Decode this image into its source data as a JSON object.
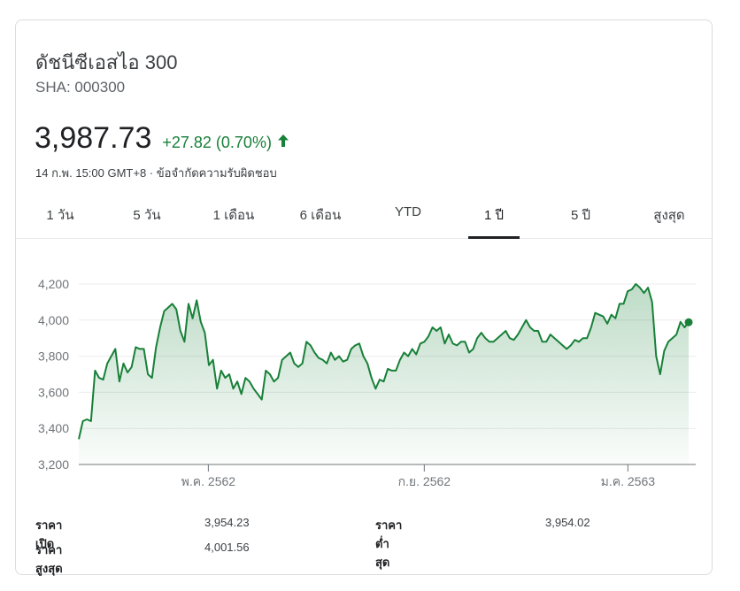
{
  "header": {
    "title": "ดัชนีซีเอสไอ 300",
    "ticker": "SHA: 000300",
    "price": "3,987.73",
    "change": "+27.82 (0.70%)",
    "timestamp": "14 ก.พ. 15:00 GMT+8 · ข้อจำกัดความรับผิดชอบ",
    "up_color": "#188038"
  },
  "tabs": [
    {
      "label": "1 วัน",
      "active": false
    },
    {
      "label": "5 วัน",
      "active": false
    },
    {
      "label": "1 เดือน",
      "active": false
    },
    {
      "label": "6 เดือน",
      "active": false
    },
    {
      "label": "YTD",
      "active": false
    },
    {
      "label": "1 ปี",
      "active": true
    },
    {
      "label": "5 ปี",
      "active": false
    },
    {
      "label": "สูงสุด",
      "active": false
    }
  ],
  "chart_data": {
    "type": "area",
    "y_ticks": [
      "4,200",
      "4,000",
      "3,800",
      "3,600",
      "3,400",
      "3,200"
    ],
    "y_tick_values": [
      4200,
      4000,
      3800,
      3600,
      3400,
      3200
    ],
    "ylim": [
      3200,
      4200
    ],
    "x_ticks": [
      "พ.ค. 2562",
      "ก.ย. 2562",
      "ม.ค. 2563"
    ],
    "x_tick_positions": [
      0.21,
      0.56,
      0.89
    ],
    "line_color": "#188038",
    "grid": true,
    "series": [
      {
        "values": [
          3340,
          3440,
          3450,
          3440,
          3720,
          3680,
          3670,
          3760,
          3800,
          3840,
          3660,
          3760,
          3710,
          3740,
          3850,
          3840,
          3840,
          3700,
          3680,
          3850,
          3960,
          4050,
          4070,
          4090,
          4060,
          3940,
          3880,
          4090,
          4010,
          4110,
          3990,
          3930,
          3750,
          3780,
          3620,
          3720,
          3680,
          3700,
          3620,
          3660,
          3590,
          3680,
          3660,
          3620,
          3590,
          3560,
          3720,
          3700,
          3660,
          3680,
          3780,
          3800,
          3820,
          3760,
          3740,
          3760,
          3880,
          3860,
          3820,
          3790,
          3780,
          3760,
          3820,
          3780,
          3800,
          3770,
          3780,
          3840,
          3860,
          3870,
          3800,
          3760,
          3680,
          3620,
          3670,
          3660,
          3730,
          3720,
          3720,
          3780,
          3820,
          3800,
          3840,
          3810,
          3870,
          3880,
          3910,
          3960,
          3940,
          3960,
          3870,
          3920,
          3870,
          3860,
          3880,
          3880,
          3820,
          3840,
          3900,
          3930,
          3900,
          3880,
          3880,
          3900,
          3920,
          3940,
          3900,
          3890,
          3920,
          3960,
          4000,
          3960,
          3940,
          3940,
          3880,
          3880,
          3920,
          3900,
          3880,
          3860,
          3840,
          3860,
          3890,
          3880,
          3900,
          3900,
          3960,
          4040,
          4030,
          4020,
          3980,
          4030,
          4010,
          4090,
          4090,
          4160,
          4170,
          4200,
          4180,
          4150,
          4180,
          4100,
          3800,
          3700,
          3830,
          3880,
          3900,
          3920,
          3990,
          3960,
          3988
        ]
      }
    ]
  },
  "stats": {
    "open_label": "ราคาเปิด",
    "open_value": "3,954.23",
    "high_label": "ราคาสูงสุด",
    "high_value": "4,001.56",
    "low_label": "ราคาต่ำสุด",
    "low_value": "3,954.02"
  }
}
